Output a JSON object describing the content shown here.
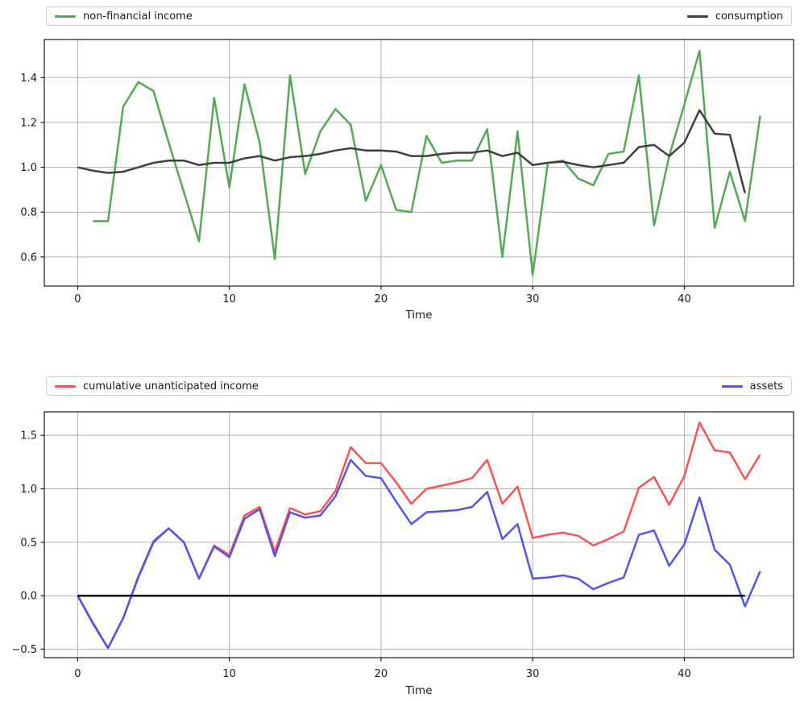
{
  "chart_data": [
    {
      "type": "line",
      "title": "",
      "xlabel": "Time",
      "ylabel": "",
      "grid": true,
      "legend_position": "top-strip-full-width",
      "legend": [
        "non-financial income",
        "consumption"
      ],
      "xlim": [
        -2.2,
        47.2
      ],
      "ylim": [
        0.47,
        1.57
      ],
      "xticks": [
        0,
        10,
        20,
        30,
        40
      ],
      "yticks": [
        0.6,
        0.8,
        1.0,
        1.2,
        1.4
      ],
      "series": [
        {
          "name": "non-financial income",
          "color": "#55a855",
          "x_start": 1,
          "values": [
            0.76,
            0.76,
            1.27,
            1.38,
            1.34,
            1.11,
            0.89,
            0.67,
            1.31,
            0.91,
            1.37,
            1.11,
            0.59,
            1.41,
            0.97,
            1.16,
            1.26,
            1.19,
            0.85,
            1.01,
            0.81,
            0.8,
            1.14,
            1.02,
            1.03,
            1.03,
            1.17,
            0.6,
            1.16,
            0.52,
            1.02,
            1.03,
            0.95,
            0.92,
            1.06,
            1.07,
            1.41,
            0.74,
            1.05,
            1.28,
            1.52,
            0.73,
            0.98,
            0.76,
            1.23
          ]
        },
        {
          "name": "consumption",
          "color": "#404040",
          "x_start": 0,
          "values": [
            1.0,
            0.985,
            0.975,
            0.98,
            1.0,
            1.02,
            1.03,
            1.03,
            1.01,
            1.02,
            1.02,
            1.04,
            1.05,
            1.03,
            1.045,
            1.05,
            1.06,
            1.075,
            1.085,
            1.075,
            1.075,
            1.07,
            1.05,
            1.05,
            1.06,
            1.065,
            1.065,
            1.075,
            1.05,
            1.065,
            1.01,
            1.02,
            1.025,
            1.01,
            1.0,
            1.01,
            1.02,
            1.09,
            1.1,
            1.05,
            1.11,
            1.255,
            1.15,
            1.145,
            0.885
          ]
        }
      ]
    },
    {
      "type": "line",
      "title": "",
      "xlabel": "Time",
      "ylabel": "",
      "grid": true,
      "legend_position": "top-strip-full-width",
      "legend": [
        "cumulative unanticipated income",
        "assets"
      ],
      "xlim": [
        -2.2,
        47.2
      ],
      "ylim": [
        -0.58,
        1.72
      ],
      "xticks": [
        0,
        10,
        20,
        30,
        40
      ],
      "yticks": [
        -0.5,
        0.0,
        0.5,
        1.0,
        1.5
      ],
      "series": [
        {
          "name": "cumulative unanticipated income",
          "color": "#f85454",
          "x_start": 0,
          "values": [
            0.0,
            -0.25,
            -0.49,
            -0.21,
            0.18,
            0.51,
            0.63,
            0.5,
            0.16,
            0.47,
            0.38,
            0.75,
            0.83,
            0.41,
            0.82,
            0.76,
            0.79,
            0.98,
            1.39,
            1.24,
            1.24,
            1.06,
            0.86,
            1.0,
            1.03,
            1.06,
            1.1,
            1.27,
            0.86,
            1.02,
            0.54,
            0.57,
            0.59,
            0.56,
            0.47,
            0.53,
            0.6,
            1.01,
            1.11,
            0.85,
            1.12,
            1.62,
            1.36,
            1.34,
            1.09,
            1.32
          ]
        },
        {
          "name": "assets",
          "color": "#5454e8",
          "x_start": 0,
          "values": [
            0.0,
            -0.26,
            -0.49,
            -0.21,
            0.17,
            0.5,
            0.63,
            0.5,
            0.16,
            0.46,
            0.36,
            0.72,
            0.81,
            0.37,
            0.78,
            0.73,
            0.75,
            0.93,
            1.27,
            1.12,
            1.1,
            0.88,
            0.67,
            0.78,
            0.79,
            0.8,
            0.83,
            0.97,
            0.53,
            0.67,
            0.16,
            0.17,
            0.19,
            0.16,
            0.06,
            0.12,
            0.17,
            0.57,
            0.61,
            0.28,
            0.48,
            0.92,
            0.43,
            0.29,
            -0.1,
            0.23
          ]
        },
        {
          "name": "zero-line",
          "color": "#000000",
          "x": [
            0,
            44
          ],
          "values": [
            0,
            0
          ]
        }
      ]
    }
  ],
  "colors": {
    "grid": "#b0b0b0",
    "spine": "#1a1a1a",
    "tick_text": "#1a1a1a"
  }
}
